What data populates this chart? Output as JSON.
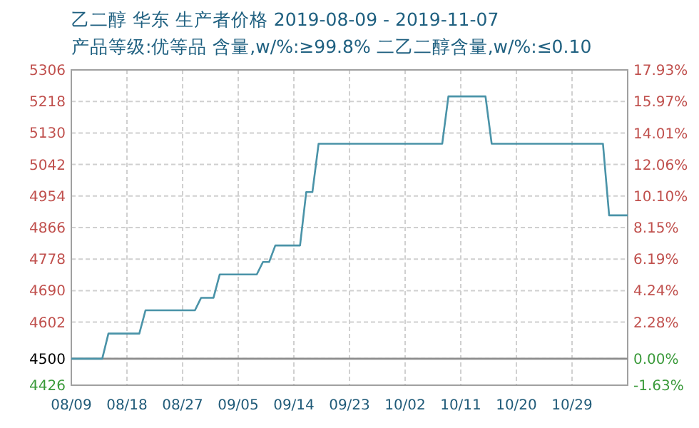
{
  "chart_data": {
    "type": "line",
    "title": "乙二醇 华东 生产者价格 2019-08-09 - 2019-11-07",
    "subtitle": "产品等级:优等品 含量,w/%:≥99.8% 二乙二醇含量,w/%:≤0.10",
    "x": [
      "2019-08-09",
      "2019-08-14",
      "2019-08-15",
      "2019-08-20",
      "2019-08-21",
      "2019-08-29",
      "2019-08-30",
      "2019-09-01",
      "2019-09-02",
      "2019-09-08",
      "2019-09-09",
      "2019-09-10",
      "2019-09-11",
      "2019-09-15",
      "2019-09-16",
      "2019-09-17",
      "2019-09-18",
      "2019-10-08",
      "2019-10-09",
      "2019-10-15",
      "2019-10-16",
      "2019-11-03",
      "2019-11-04",
      "2019-11-07"
    ],
    "series": [
      {
        "color": "#4a93a8",
        "values": [
          4500,
          4500,
          4570,
          4570,
          4635,
          4635,
          4670,
          4670,
          4735,
          4735,
          4770,
          4770,
          4816,
          4816,
          4965,
          4965,
          5100,
          5100,
          5232,
          5232,
          5100,
          5100,
          4900,
          4900
        ]
      }
    ],
    "xlim": [
      "2019-08-09",
      "2019-11-07"
    ],
    "xticks": [
      {
        "value": "2019-08-09",
        "label": "08/09"
      },
      {
        "value": "2019-08-18",
        "label": "08/18"
      },
      {
        "value": "2019-08-27",
        "label": "08/27"
      },
      {
        "value": "2019-09-05",
        "label": "09/05"
      },
      {
        "value": "2019-09-14",
        "label": "09/14"
      },
      {
        "value": "2019-09-23",
        "label": "09/23"
      },
      {
        "value": "2019-10-02",
        "label": "10/02"
      },
      {
        "value": "2019-10-11",
        "label": "10/11"
      },
      {
        "value": "2019-10-20",
        "label": "10/20"
      },
      {
        "value": "2019-10-29",
        "label": "10/29"
      }
    ],
    "ylim": [
      4426,
      5306
    ],
    "yticks": [
      4426,
      4500,
      4602,
      4690,
      4778,
      4866,
      4954,
      5042,
      5130,
      5218,
      5306
    ],
    "y2lim": [
      -1.63,
      17.93
    ],
    "y2ticks": [
      {
        "value": -1.63,
        "label": "-1.63%"
      },
      {
        "value": 0,
        "label": "0.00%"
      },
      {
        "value": 2.28,
        "label": "2.28%"
      },
      {
        "value": 4.24,
        "label": "4.24%"
      },
      {
        "value": 6.19,
        "label": "6.19%"
      },
      {
        "value": 8.15,
        "label": "8.15%"
      },
      {
        "value": 10.1,
        "label": "10.10%"
      },
      {
        "value": 12.06,
        "label": "12.06%"
      },
      {
        "value": 14.01,
        "label": "14.01%"
      },
      {
        "value": 15.97,
        "label": "15.97%"
      },
      {
        "value": 17.93,
        "label": "17.93%"
      }
    ],
    "ref_lines": [
      {
        "axis": "y",
        "value": 4500,
        "color": "#8c8c8c",
        "line_style": "solid"
      }
    ],
    "grid": true,
    "line_style": "solid",
    "marker": "none"
  }
}
